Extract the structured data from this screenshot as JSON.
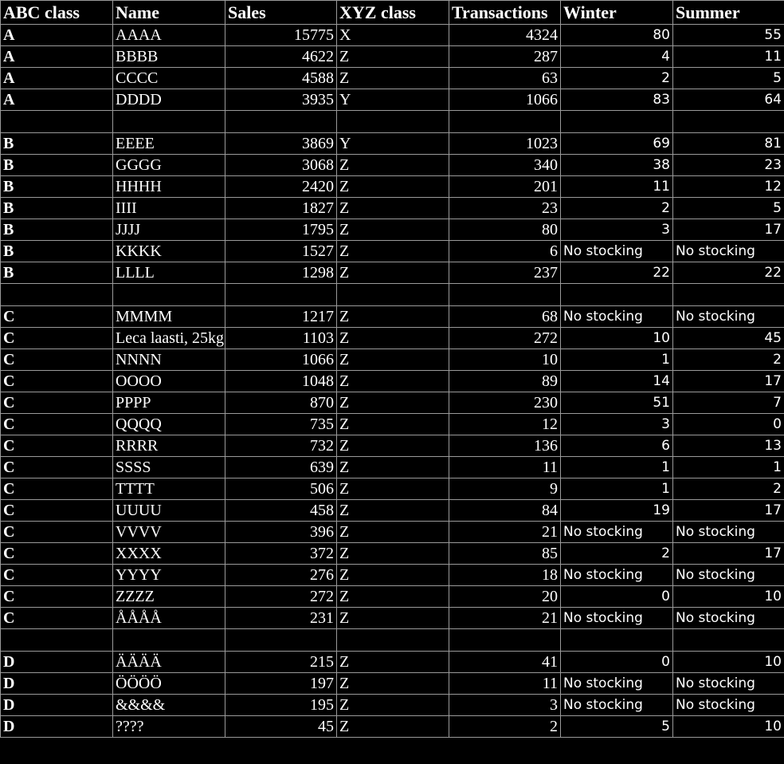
{
  "headers": [
    "ABC class",
    "Name",
    "Sales",
    "XYZ class",
    "Transactions",
    "Winter",
    "Summer"
  ],
  "rows": [
    [
      "A",
      "AAAA",
      "15775",
      "X",
      "4324",
      "80",
      "55"
    ],
    [
      "A",
      "BBBB",
      "4622",
      "Z",
      "287",
      "4",
      "11"
    ],
    [
      "A",
      "CCCC",
      "4588",
      "Z",
      "63",
      "2",
      "5"
    ],
    [
      "A",
      "DDDD",
      "3935",
      "Y",
      "1066",
      "83",
      "64"
    ],
    [],
    [
      "B",
      "EEEE",
      "3869",
      "Y",
      "1023",
      "69",
      "81"
    ],
    [
      "B",
      "GGGG",
      "3068",
      "Z",
      "340",
      "38",
      "23"
    ],
    [
      "B",
      "HHHH",
      "2420",
      "Z",
      "201",
      "11",
      "12"
    ],
    [
      "B",
      "IIII",
      "1827",
      "Z",
      "23",
      "2",
      "5"
    ],
    [
      "B",
      "JJJJ",
      "1795",
      "Z",
      "80",
      "3",
      "17"
    ],
    [
      "B",
      "KKKK",
      "1527",
      "Z",
      "6",
      "No stocking",
      "No stocking"
    ],
    [
      "B",
      "LLLL",
      "1298",
      "Z",
      "237",
      "22",
      "22"
    ],
    [],
    [
      "C",
      "MMMM",
      "1217",
      "Z",
      "68",
      "No stocking",
      "No stocking"
    ],
    [
      "C",
      "Leca laasti, 25kg",
      "1103",
      "Z",
      "272",
      "10",
      "45"
    ],
    [
      "C",
      "NNNN",
      "1066",
      "Z",
      "10",
      "1",
      "2"
    ],
    [
      "C",
      "OOOO",
      "1048",
      "Z",
      "89",
      "14",
      "17"
    ],
    [
      "C",
      "PPPP",
      "870",
      "Z",
      "230",
      "51",
      "7"
    ],
    [
      "C",
      "QQQQ",
      "735",
      "Z",
      "12",
      "3",
      "0"
    ],
    [
      "C",
      "RRRR",
      "732",
      "Z",
      "136",
      "6",
      "13"
    ],
    [
      "C",
      "SSSS",
      "639",
      "Z",
      "11",
      "1",
      "1"
    ],
    [
      "C",
      "TTTT",
      "506",
      "Z",
      "9",
      "1",
      "2"
    ],
    [
      "C",
      "UUUU",
      "458",
      "Z",
      "84",
      "19",
      "17"
    ],
    [
      "C",
      "VVVV",
      "396",
      "Z",
      "21",
      "No stocking",
      "No stocking"
    ],
    [
      "C",
      "XXXX",
      "372",
      "Z",
      "85",
      "2",
      "17"
    ],
    [
      "C",
      "YYYY",
      "276",
      "Z",
      "18",
      "No stocking",
      "No stocking"
    ],
    [
      "C",
      "ZZZZ",
      "272",
      "Z",
      "20",
      "0",
      "10"
    ],
    [
      "C",
      "ÅÅÅÅ",
      "231",
      "Z",
      "21",
      "No stocking",
      "No stocking"
    ],
    [],
    [
      "D",
      "ÄÄÄÄ",
      "215",
      "Z",
      "41",
      "0",
      "10"
    ],
    [
      "D",
      "ÖÖÖÖ",
      "197",
      "Z",
      "11",
      "No stocking",
      "No stocking"
    ],
    [
      "D",
      "&&&&",
      "195",
      "Z",
      "3",
      "No stocking",
      "No stocking"
    ],
    [
      "D",
      "????",
      "45",
      "Z",
      "2",
      "5",
      "10"
    ]
  ]
}
